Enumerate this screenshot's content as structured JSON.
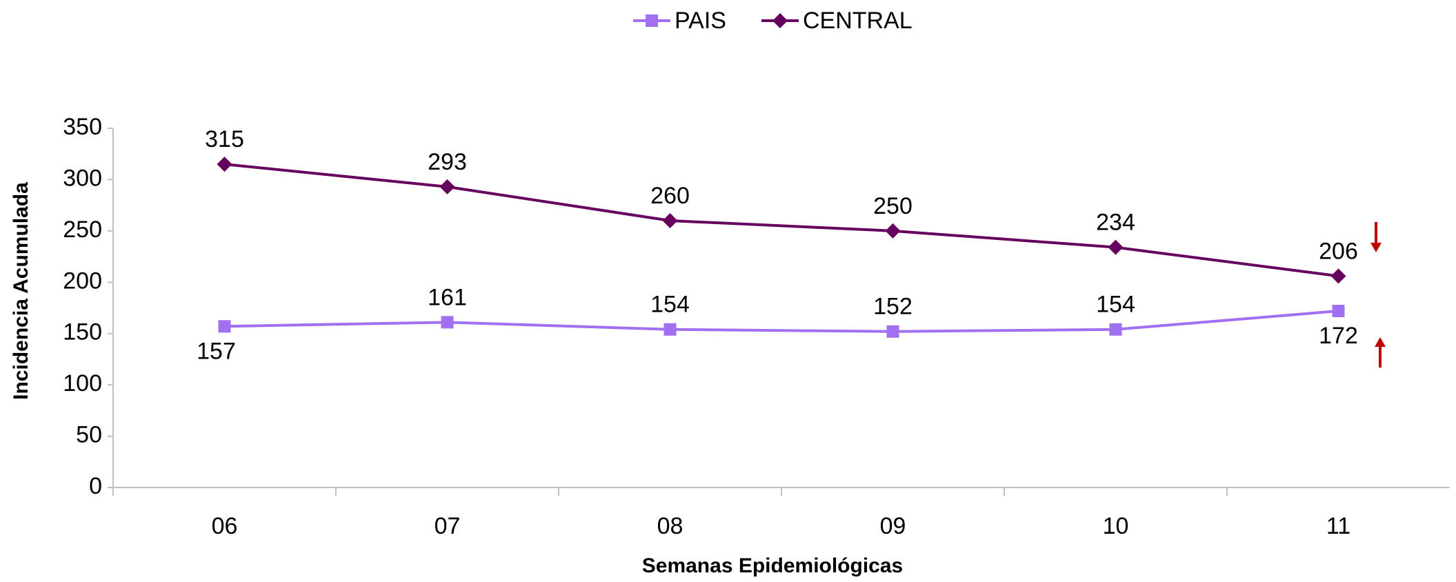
{
  "chart_data": {
    "type": "line",
    "x_label": "Semanas Epidemiológicas",
    "y_label": "Incidencia Acumulada",
    "categories": [
      "06",
      "07",
      "08",
      "09",
      "10",
      "11"
    ],
    "series": [
      {
        "name": "PAIS",
        "color": "#a070f0",
        "marker": "square",
        "values": [
          157,
          161,
          154,
          152,
          154,
          172
        ]
      },
      {
        "name": "CENTRAL",
        "color": "#66005f",
        "marker": "diamond",
        "values": [
          315,
          293,
          260,
          250,
          234,
          206
        ]
      }
    ],
    "ylim": [
      0,
      350
    ],
    "yticks": [
      0,
      50,
      100,
      150,
      200,
      250,
      300,
      350
    ],
    "grid": false,
    "legend": "top"
  }
}
